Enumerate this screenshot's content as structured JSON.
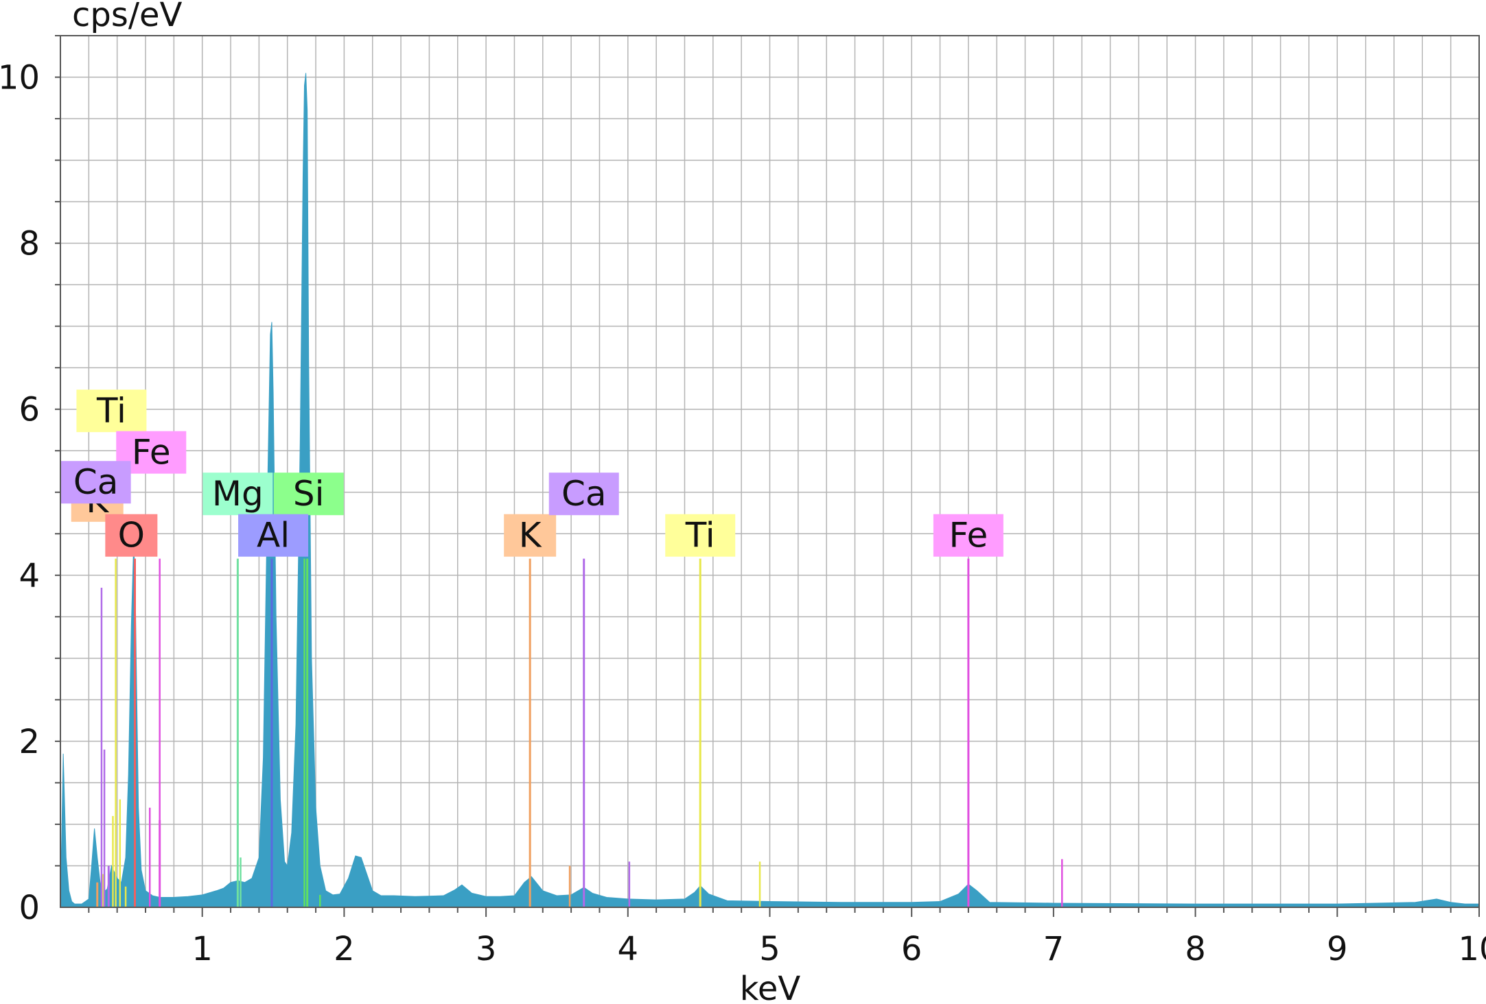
{
  "chart_data": {
    "type": "area",
    "title": "",
    "xlabel": "keV",
    "ylabel": "cps/eV",
    "xlim": [
      0,
      10
    ],
    "ylim": [
      0,
      10.5
    ],
    "xticks": [
      1,
      2,
      3,
      4,
      5,
      6,
      7,
      8,
      9,
      10
    ],
    "yticks": [
      0,
      2,
      4,
      6,
      8,
      10
    ],
    "grid": true,
    "spectrum_color": "#3a9fc4",
    "spectrum": {
      "x": [
        0.0,
        0.02,
        0.04,
        0.06,
        0.08,
        0.1,
        0.15,
        0.2,
        0.22,
        0.24,
        0.26,
        0.28,
        0.3,
        0.33,
        0.36,
        0.4,
        0.43,
        0.46,
        0.48,
        0.5,
        0.515,
        0.525,
        0.535,
        0.55,
        0.57,
        0.6,
        0.65,
        0.7,
        0.8,
        0.9,
        1.0,
        1.1,
        1.15,
        1.2,
        1.25,
        1.3,
        1.35,
        1.4,
        1.43,
        1.46,
        1.48,
        1.49,
        1.5,
        1.52,
        1.55,
        1.58,
        1.6,
        1.63,
        1.66,
        1.69,
        1.71,
        1.72,
        1.73,
        1.74,
        1.75,
        1.77,
        1.8,
        1.83,
        1.87,
        1.92,
        1.97,
        2.03,
        2.08,
        2.12,
        2.15,
        2.2,
        2.26,
        2.35,
        2.5,
        2.7,
        2.78,
        2.83,
        2.9,
        3.0,
        3.1,
        3.2,
        3.27,
        3.32,
        3.4,
        3.5,
        3.6,
        3.65,
        3.69,
        3.75,
        3.85,
        4.0,
        4.2,
        4.4,
        4.47,
        4.51,
        4.57,
        4.7,
        5.0,
        5.5,
        6.0,
        6.2,
        6.33,
        6.4,
        6.46,
        6.55,
        7.0,
        8.0,
        9.0,
        9.55,
        9.7,
        9.8,
        9.9,
        10.0
      ],
      "y": [
        0.0,
        1.85,
        0.6,
        0.2,
        0.07,
        0.04,
        0.04,
        0.1,
        0.5,
        0.95,
        0.6,
        0.3,
        0.18,
        0.22,
        0.5,
        0.35,
        0.3,
        0.6,
        1.6,
        3.4,
        4.3,
        4.15,
        2.9,
        1.2,
        0.45,
        0.2,
        0.14,
        0.12,
        0.12,
        0.13,
        0.15,
        0.2,
        0.23,
        0.3,
        0.32,
        0.3,
        0.35,
        0.6,
        1.8,
        5.0,
        6.9,
        7.05,
        6.2,
        3.5,
        1.3,
        0.55,
        0.5,
        0.9,
        2.2,
        5.6,
        8.8,
        9.9,
        10.05,
        9.6,
        6.6,
        3.0,
        1.2,
        0.5,
        0.2,
        0.15,
        0.16,
        0.35,
        0.62,
        0.6,
        0.45,
        0.2,
        0.14,
        0.14,
        0.13,
        0.14,
        0.21,
        0.27,
        0.17,
        0.13,
        0.13,
        0.14,
        0.3,
        0.37,
        0.2,
        0.14,
        0.15,
        0.2,
        0.24,
        0.17,
        0.12,
        0.1,
        0.09,
        0.1,
        0.18,
        0.26,
        0.16,
        0.08,
        0.07,
        0.06,
        0.06,
        0.07,
        0.16,
        0.28,
        0.2,
        0.06,
        0.05,
        0.04,
        0.04,
        0.06,
        0.1,
        0.06,
        0.04,
        0.04
      ]
    },
    "element_markers": [
      {
        "element": "Ti",
        "x": 0.3,
        "y": 0.4,
        "color": "#e8e84a"
      },
      {
        "element": "K",
        "x": 0.26,
        "y": 0.3,
        "color": "#f0a060"
      },
      {
        "element": "Ca",
        "x": 0.34,
        "y": 0.5,
        "color": "#b06ae8"
      },
      {
        "element": "O",
        "x": 0.525,
        "y": 4.2,
        "color": "#f06060"
      },
      {
        "element": "Fe",
        "x": 0.7,
        "y": 1.05,
        "color": "#e050e0"
      },
      {
        "element": "Mg",
        "x": 1.25,
        "y": 4.2,
        "color": "#70e0a0"
      },
      {
        "element": "Al",
        "x": 1.49,
        "y": 4.2,
        "color": "#5a6ae0"
      },
      {
        "element": "Si",
        "x": 1.74,
        "y": 4.2,
        "color": "#60e060"
      },
      {
        "element": "K",
        "x": 3.31,
        "y": 4.2,
        "color": "#f0a060"
      },
      {
        "element": "Ca",
        "x": 3.69,
        "y": 4.2,
        "color": "#b06ae8"
      },
      {
        "element": "Ti",
        "x": 4.51,
        "y": 4.2,
        "color": "#e8e84a"
      },
      {
        "element": "Fe",
        "x": 6.4,
        "y": 4.2,
        "color": "#e050e0"
      }
    ],
    "labels": [
      {
        "text": "Ti",
        "x": 0.36,
        "y": 5.98,
        "color": "#ffff9a"
      },
      {
        "text": "Fe",
        "x": 0.64,
        "y": 5.48,
        "color": "#ff9cff"
      },
      {
        "text": "K",
        "x": 0.26,
        "y": 4.9,
        "color": "#ffc89a"
      },
      {
        "text": "Ca",
        "x": 0.25,
        "y": 5.12,
        "color": "#c89cff"
      },
      {
        "text": "O",
        "x": 0.5,
        "y": 4.48,
        "color": "#ff8a8a"
      },
      {
        "text": "Mg",
        "x": 1.25,
        "y": 4.98,
        "color": "#9cffce"
      },
      {
        "text": "Si",
        "x": 1.75,
        "y": 4.98,
        "color": "#8cff8c"
      },
      {
        "text": "Al",
        "x": 1.5,
        "y": 4.48,
        "color": "#9c9cff"
      },
      {
        "text": "K",
        "x": 3.31,
        "y": 4.48,
        "color": "#ffc89a"
      },
      {
        "text": "Ca",
        "x": 3.69,
        "y": 4.98,
        "color": "#c89cff"
      },
      {
        "text": "Ti",
        "x": 4.51,
        "y": 4.48,
        "color": "#ffff9a"
      },
      {
        "text": "Fe",
        "x": 6.4,
        "y": 4.48,
        "color": "#ff9cff"
      }
    ],
    "minor_lines": [
      {
        "x": 0.29,
        "y": 3.85,
        "color": "#b06ae8"
      },
      {
        "x": 0.31,
        "y": 1.9,
        "color": "#b06ae8"
      },
      {
        "x": 0.37,
        "y": 1.1,
        "color": "#e8e84a"
      },
      {
        "x": 0.39,
        "y": 4.2,
        "color": "#e8e84a"
      },
      {
        "x": 0.42,
        "y": 1.3,
        "color": "#e8e84a"
      },
      {
        "x": 0.46,
        "y": 0.25,
        "color": "#e8e84a"
      },
      {
        "x": 0.63,
        "y": 1.2,
        "color": "#e050e0"
      },
      {
        "x": 0.7,
        "y": 4.2,
        "color": "#e050e0"
      },
      {
        "x": 1.27,
        "y": 0.6,
        "color": "#70e0a0"
      },
      {
        "x": 1.72,
        "y": 4.2,
        "color": "#60e060"
      },
      {
        "x": 1.83,
        "y": 0.15,
        "color": "#60e060"
      },
      {
        "x": 3.31,
        "y": 2.1,
        "color": "#f0a060"
      },
      {
        "x": 3.59,
        "y": 0.5,
        "color": "#f0a060"
      },
      {
        "x": 4.01,
        "y": 0.55,
        "color": "#b06ae8"
      },
      {
        "x": 4.51,
        "y": 2.1,
        "color": "#e8e84a"
      },
      {
        "x": 4.93,
        "y": 0.55,
        "color": "#e8e84a"
      },
      {
        "x": 6.4,
        "y": 2.1,
        "color": "#e050e0"
      },
      {
        "x": 7.06,
        "y": 0.58,
        "color": "#e050e0"
      }
    ]
  }
}
